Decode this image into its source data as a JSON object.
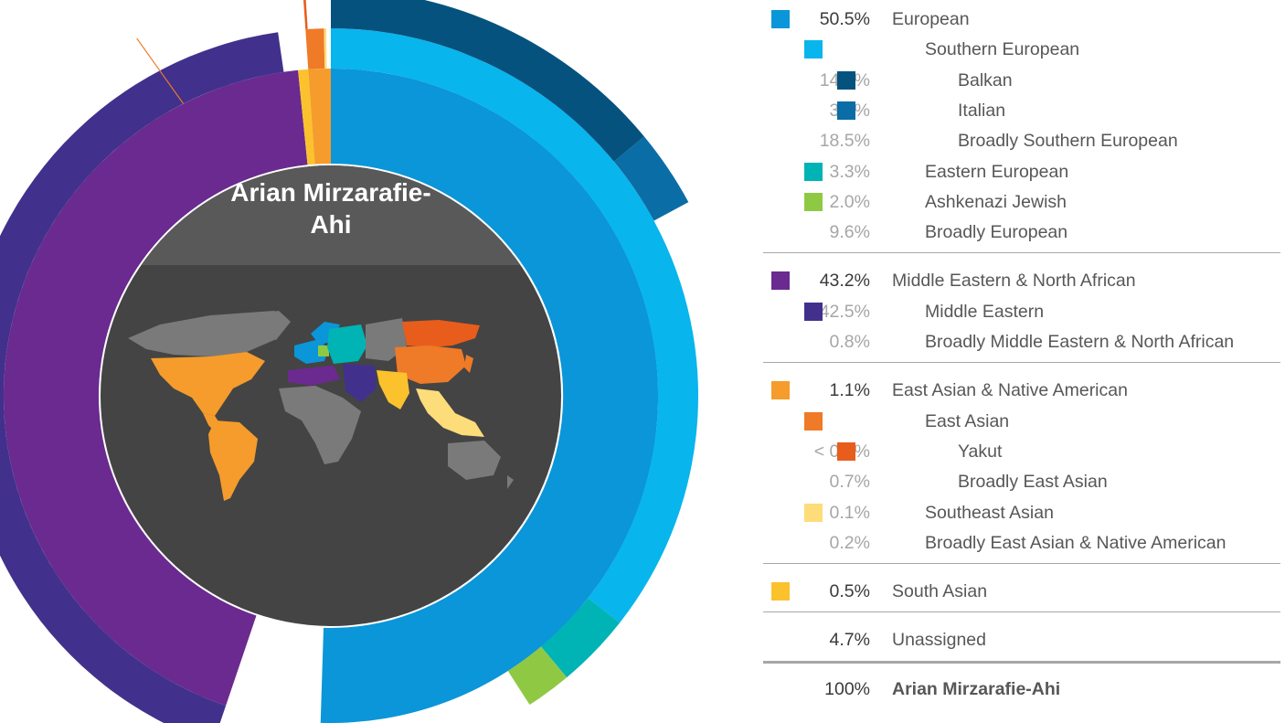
{
  "chart_data": {
    "type": "sunburst",
    "title": "Arian Mirzarafie-Ahi",
    "center_title_lines": [
      "Arian Mirzarafie-",
      "Ahi"
    ],
    "total": {
      "percent": "100%",
      "label": "Arian Mirzarafie-Ahi"
    },
    "rows": [
      {
        "level": 0,
        "percent": "50.5%",
        "label": "European",
        "value": 50.5,
        "color": "#0a96d8",
        "pct_style": "dark"
      },
      {
        "level": 1,
        "percent": "",
        "label": "Southern European",
        "value": 35.6,
        "color": "#08b5ec",
        "pct_style": "light"
      },
      {
        "level": 2,
        "percent": "14.0%",
        "label": "Balkan",
        "value": 14.0,
        "color": "#06527e",
        "pct_style": "light"
      },
      {
        "level": 2,
        "percent": "3.1%",
        "label": "Italian",
        "value": 3.1,
        "color": "#0b6da5",
        "pct_style": "light"
      },
      {
        "level": 2,
        "percent": "18.5%",
        "label": "Broadly Southern European",
        "value": 18.5,
        "color": "",
        "pct_style": "light"
      },
      {
        "level": 1,
        "percent": "3.3%",
        "label": "Eastern European",
        "value": 3.3,
        "color": "#00b3b5",
        "pct_style": "light"
      },
      {
        "level": 1,
        "percent": "2.0%",
        "label": "Ashkenazi Jewish",
        "value": 2.0,
        "color": "#8fc943",
        "pct_style": "light"
      },
      {
        "level": 1,
        "percent": "9.6%",
        "label": "Broadly European",
        "value": 9.6,
        "color": "",
        "pct_style": "light"
      },
      {
        "level": 0,
        "percent": "43.2%",
        "label": "Middle Eastern & North African",
        "value": 43.2,
        "color": "#6a2a8f",
        "pct_style": "dark"
      },
      {
        "level": 1,
        "percent": "42.5%",
        "label": "Middle Eastern",
        "value": 42.5,
        "color": "#41318c",
        "pct_style": "light"
      },
      {
        "level": 1,
        "percent": "0.8%",
        "label": "Broadly Middle Eastern & North African",
        "value": 0.8,
        "color": "",
        "pct_style": "light"
      },
      {
        "level": 0,
        "percent": "1.1%",
        "label": "East Asian & Native American",
        "value": 1.1,
        "color": "#f59c2c",
        "pct_style": "dark"
      },
      {
        "level": 1,
        "percent": "",
        "label": "East Asian",
        "value": 0.8,
        "color": "#ef7a27",
        "pct_style": "light"
      },
      {
        "level": 2,
        "percent": "< 0.1%",
        "label": "Yakut",
        "value": 0.05,
        "color": "#e85d1c",
        "pct_style": "light"
      },
      {
        "level": 2,
        "percent": "0.7%",
        "label": "Broadly East Asian",
        "value": 0.7,
        "color": "",
        "pct_style": "light"
      },
      {
        "level": 1,
        "percent": "0.1%",
        "label": "Southeast Asian",
        "value": 0.1,
        "color": "#fddc7a",
        "pct_style": "light"
      },
      {
        "level": 1,
        "percent": "0.2%",
        "label": "Broadly East Asian & Native American",
        "value": 0.2,
        "color": "",
        "pct_style": "light"
      },
      {
        "level": 0,
        "percent": "0.5%",
        "label": "South Asian",
        "value": 0.5,
        "color": "#fbc22e",
        "pct_style": "dark"
      },
      {
        "level": 0,
        "percent": "4.7%",
        "label": "Unassigned",
        "value": 4.7,
        "color": "",
        "pct_style": "dark"
      }
    ],
    "center_colors": {
      "top": "#595959",
      "bottom": "#444444",
      "land": "#7a7a7a"
    },
    "map_region_colors": {
      "americas": "#f59c2c",
      "europe": "#0a96d8",
      "eastern_europe": "#00b3b5",
      "ashkenazi": "#8fc943",
      "mena": "#6a2a8f",
      "middle_east": "#41318c",
      "east_asia": "#ef7a27",
      "yakut": "#e85d1c",
      "south_asia": "#fbc22e",
      "southeast_asia": "#fddc7a"
    }
  }
}
